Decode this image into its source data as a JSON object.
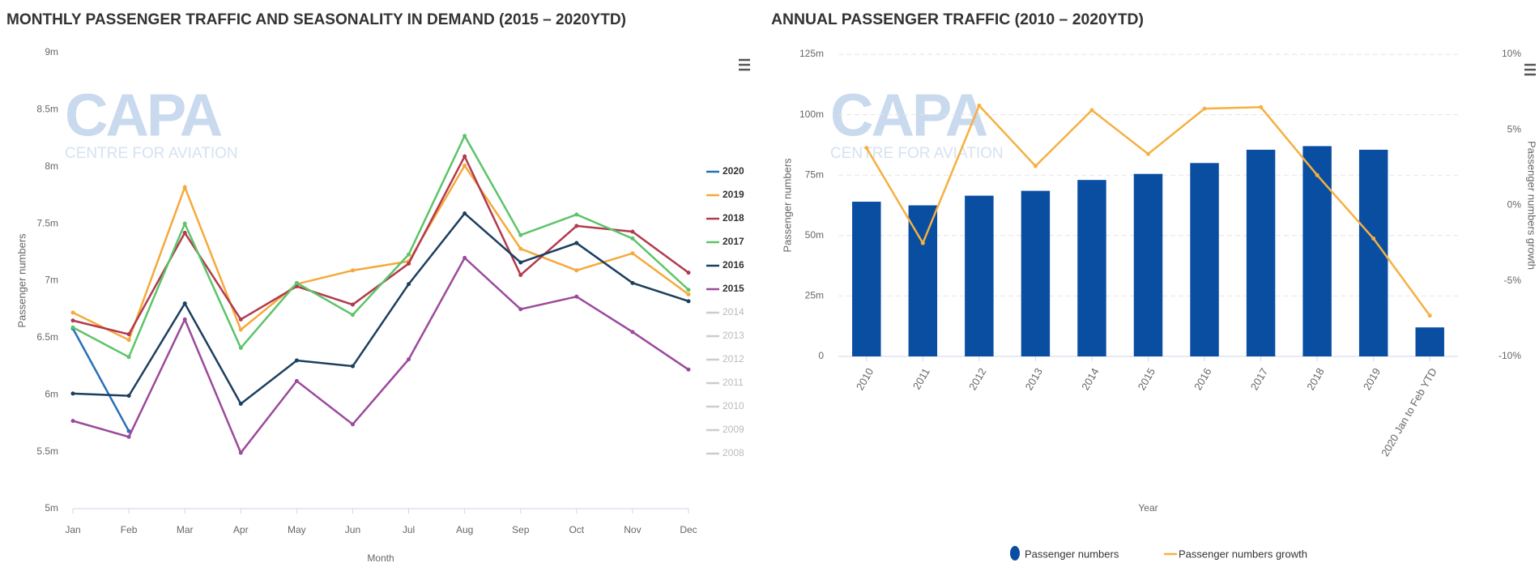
{
  "chart_data": [
    {
      "type": "line",
      "title": "MONTHLY PASSENGER TRAFFIC AND SEASONALITY IN DEMAND (2015 – 2020YTD)",
      "watermark": {
        "title": "CAPA",
        "subtitle": "CENTRE FOR AVIATION"
      },
      "y_label": "Passenger numbers",
      "x_label": "Month",
      "categories": [
        "Jan",
        "Feb",
        "Mar",
        "Apr",
        "May",
        "Jun",
        "Jul",
        "Aug",
        "Sep",
        "Oct",
        "Nov",
        "Dec"
      ],
      "ylim": [
        5,
        9
      ],
      "yticks": [
        {
          "value": 5,
          "label": "5m"
        },
        {
          "value": 5.5,
          "label": "5.5m"
        },
        {
          "value": 6,
          "label": "6m"
        },
        {
          "value": 6.5,
          "label": "6.5m"
        },
        {
          "value": 7,
          "label": "7m"
        },
        {
          "value": 7.5,
          "label": "7.5m"
        },
        {
          "value": 8,
          "label": "8m"
        },
        {
          "value": 8.5,
          "label": "8.5m"
        },
        {
          "value": 9,
          "label": "9m"
        }
      ],
      "grid": false,
      "series": [
        {
          "name": "2020",
          "color": "#2a6fb5",
          "values": [
            6.58,
            5.68,
            null,
            null,
            null,
            null,
            null,
            null,
            null,
            null,
            null,
            null
          ]
        },
        {
          "name": "2019",
          "color": "#f5a93a",
          "values": [
            6.72,
            6.48,
            7.82,
            6.57,
            6.97,
            7.09,
            7.17,
            8.01,
            7.28,
            7.09,
            7.24,
            6.88
          ]
        },
        {
          "name": "2018",
          "color": "#b23a4e",
          "values": [
            6.65,
            6.53,
            7.42,
            6.66,
            6.95,
            6.79,
            7.15,
            8.09,
            7.05,
            7.48,
            7.43,
            7.07
          ]
        },
        {
          "name": "2017",
          "color": "#5cc46a",
          "values": [
            6.59,
            6.33,
            7.5,
            6.41,
            6.98,
            6.7,
            7.23,
            8.27,
            7.4,
            7.58,
            7.37,
            6.92
          ]
        },
        {
          "name": "2016",
          "color": "#1c3f5e",
          "values": [
            6.01,
            5.99,
            6.8,
            5.92,
            6.3,
            6.25,
            6.97,
            7.59,
            7.16,
            7.33,
            6.98,
            6.82
          ]
        },
        {
          "name": "2015",
          "color": "#9b4a9b",
          "values": [
            5.77,
            5.63,
            6.66,
            5.49,
            6.12,
            5.74,
            6.31,
            7.2,
            6.75,
            6.86,
            6.55,
            6.22
          ]
        }
      ],
      "hidden_series": [
        "2014",
        "2013",
        "2012",
        "2011",
        "2010",
        "2009",
        "2008"
      ]
    },
    {
      "type": "bar",
      "title": "ANNUAL PASSENGER TRAFFIC (2010 – 2020YTD)",
      "watermark": {
        "title": "CAPA",
        "subtitle": "CENTRE FOR AVIATION"
      },
      "y_label": "Passenger numbers",
      "y2_label": "Passenger numbers growth",
      "x_label": "Year",
      "categories": [
        "2010",
        "2011",
        "2012",
        "2013",
        "2014",
        "2015",
        "2016",
        "2017",
        "2018",
        "2019",
        "2020 Jan to Feb YTD"
      ],
      "ylim": [
        0,
        125
      ],
      "yticks": [
        0,
        {
          "value": 25,
          "label": "25m"
        },
        {
          "value": 50,
          "label": "50m"
        },
        {
          "value": 75,
          "label": "75m"
        },
        {
          "value": 100,
          "label": "100m"
        },
        {
          "value": 125,
          "label": "125m"
        }
      ],
      "y2lim": [
        -10,
        10
      ],
      "y2ticks": [
        {
          "value": -10,
          "label": "-10%"
        },
        {
          "value": -5,
          "label": "-5%"
        },
        {
          "value": 0,
          "label": "0%"
        },
        {
          "value": 5,
          "label": "5%"
        },
        {
          "value": 10,
          "label": "10%"
        }
      ],
      "grid": true,
      "series": [
        {
          "name": "Passenger numbers",
          "color": "#0a4ea2",
          "values": [
            64,
            62.5,
            66.5,
            68.5,
            73,
            75.5,
            80,
            85.5,
            87,
            85.5,
            12
          ]
        },
        {
          "name": "Passenger numbers growth",
          "color": "#f5b041",
          "type": "line",
          "axis": "y2",
          "values": [
            3.8,
            -2.5,
            6.6,
            2.6,
            6.3,
            3.4,
            6.4,
            6.5,
            2.0,
            -2.2,
            -7.3
          ]
        }
      ]
    }
  ]
}
